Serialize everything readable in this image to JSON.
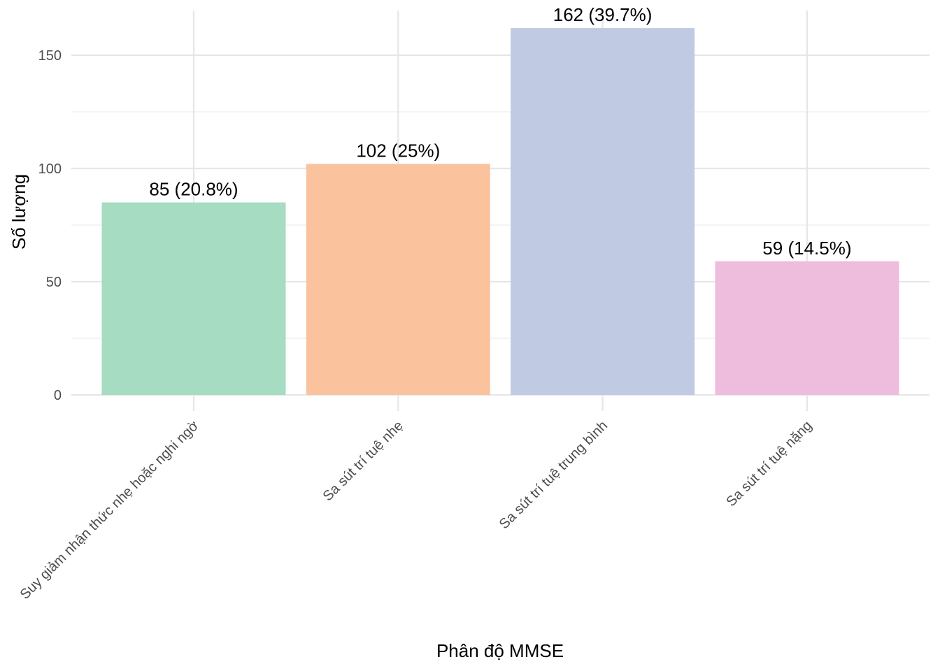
{
  "chart_data": {
    "type": "bar",
    "title": "",
    "xlabel": "Phân độ MMSE",
    "ylabel": "Số lượng",
    "categories": [
      "Suy giảm nhận thức nhẹ hoặc nghi ngờ",
      "Sa sút trí tuệ nhẹ",
      "Sa sút trí tuệ trung bình",
      "Sa sút trí tuệ nặng"
    ],
    "values": [
      85,
      102,
      162,
      59
    ],
    "data_labels": [
      "85 (20.8%)",
      "102 (25%)",
      "162 (39.7%)",
      "59 (14.5%)"
    ],
    "colors": [
      "#a6dcc1",
      "#fac39e",
      "#c0cae3",
      "#eebcdd"
    ],
    "ylim": [
      0,
      162
    ],
    "y_ticks": [
      0,
      50,
      100,
      150
    ],
    "y_minor_ticks": [
      25,
      75,
      125
    ],
    "grid": true,
    "legend": "none"
  }
}
